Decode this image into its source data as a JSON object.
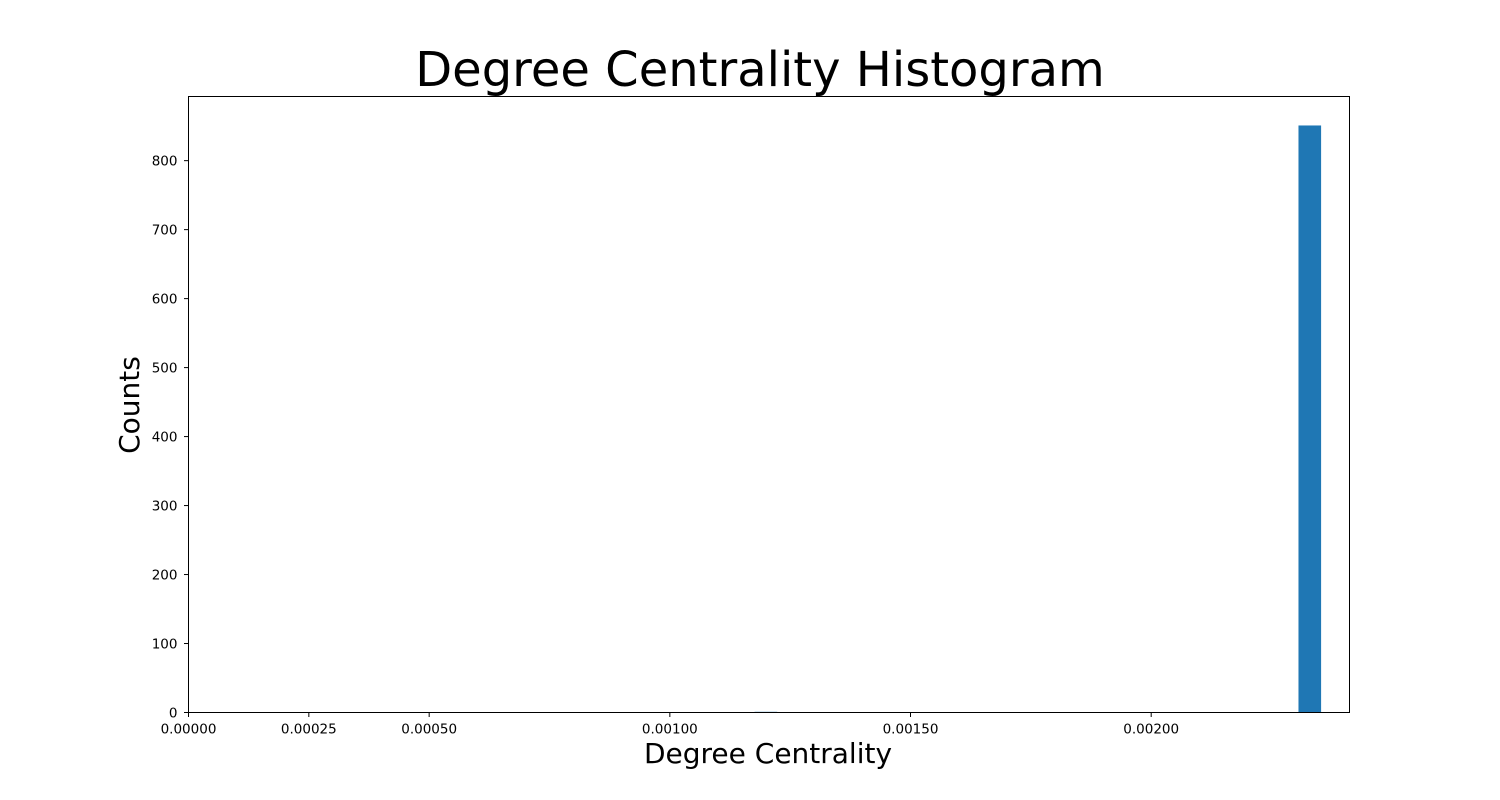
{
  "chart_data": {
    "type": "bar",
    "title": "Degree Centrality Histogram",
    "xlabel": "Degree Centrality",
    "ylabel": "Counts",
    "xlim": [
      0.0,
      0.002412
    ],
    "ylim": [
      0,
      893
    ],
    "x_ticks": [
      {
        "value": 0.0,
        "label": "0.00000"
      },
      {
        "value": 0.00025,
        "label": "0.00025"
      },
      {
        "value": 0.0005,
        "label": "0.00050"
      },
      {
        "value": 0.001,
        "label": "0.00100"
      },
      {
        "value": 0.0015,
        "label": "0.00150"
      },
      {
        "value": 0.002,
        "label": "0.00200"
      }
    ],
    "y_ticks": [
      {
        "value": 0,
        "label": "0"
      },
      {
        "value": 100,
        "label": "100"
      },
      {
        "value": 200,
        "label": "200"
      },
      {
        "value": 300,
        "label": "300"
      },
      {
        "value": 400,
        "label": "400"
      },
      {
        "value": 500,
        "label": "500"
      },
      {
        "value": 600,
        "label": "600"
      },
      {
        "value": 700,
        "label": "700"
      },
      {
        "value": 800,
        "label": "800"
      }
    ],
    "bins": [
      {
        "x0": 0.001176,
        "x1": 0.001223,
        "count": 1
      },
      {
        "x0": 0.002306,
        "x1": 0.002353,
        "count": 851
      }
    ],
    "bar_color": "#1f77b4",
    "grid": false,
    "legend": "none"
  }
}
